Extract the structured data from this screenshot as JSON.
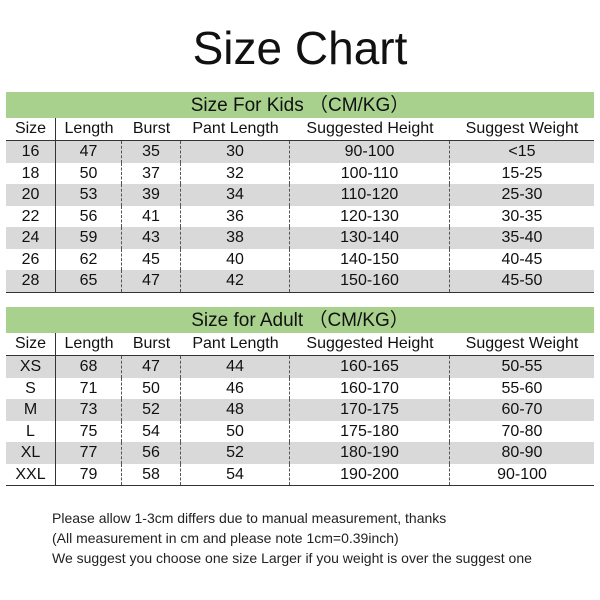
{
  "title": "Size Chart",
  "columns": [
    "Size",
    "Length",
    "Burst",
    "Pant Length",
    "Suggested Height",
    "Suggest Weight"
  ],
  "colors": {
    "band": "#a9d18e",
    "stripe": "#d9d9d9"
  },
  "kids": {
    "heading": "Size For Kids （CM/KG）",
    "rows": [
      [
        "16",
        "47",
        "35",
        "30",
        "90-100",
        "<15"
      ],
      [
        "18",
        "50",
        "37",
        "32",
        "100-110",
        "15-25"
      ],
      [
        "20",
        "53",
        "39",
        "34",
        "110-120",
        "25-30"
      ],
      [
        "22",
        "56",
        "41",
        "36",
        "120-130",
        "30-35"
      ],
      [
        "24",
        "59",
        "43",
        "38",
        "130-140",
        "35-40"
      ],
      [
        "26",
        "62",
        "45",
        "40",
        "140-150",
        "40-45"
      ],
      [
        "28",
        "65",
        "47",
        "42",
        "150-160",
        "45-50"
      ]
    ]
  },
  "adult": {
    "heading": "Size for Adult （CM/KG）",
    "rows": [
      [
        "XS",
        "68",
        "47",
        "44",
        "160-165",
        "50-55"
      ],
      [
        "S",
        "71",
        "50",
        "46",
        "160-170",
        "55-60"
      ],
      [
        "M",
        "73",
        "52",
        "48",
        "170-175",
        "60-70"
      ],
      [
        "L",
        "75",
        "54",
        "50",
        "175-180",
        "70-80"
      ],
      [
        "XL",
        "77",
        "56",
        "52",
        "180-190",
        "80-90"
      ],
      [
        "XXL",
        "79",
        "58",
        "54",
        "190-200",
        "90-100"
      ]
    ]
  },
  "notes": [
    "Please allow 1-3cm differs due to manual measurement, thanks",
    "(All measurement in cm and please note 1cm=0.39inch)",
    "We suggest you choose one size Larger if you weight is over the suggest one"
  ]
}
